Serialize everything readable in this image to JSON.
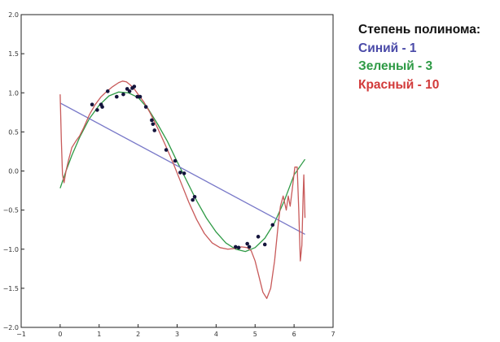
{
  "chart_data": {
    "type": "line",
    "title": "",
    "xlabel": "",
    "ylabel": "",
    "xlim": [
      -1,
      7
    ],
    "ylim": [
      -2.0,
      2.0
    ],
    "x_ticks": [
      "−1",
      "0",
      "1",
      "2",
      "3",
      "4",
      "5",
      "6",
      "7"
    ],
    "y_ticks": [
      "2.0",
      "1.5",
      "1.0",
      "0.5",
      "0.0",
      "−0.5",
      "−1.0",
      "−1.5",
      "−2.0"
    ],
    "grid": false,
    "legend": {
      "placement": "outside-right",
      "title": "Степень полинома:",
      "entries": [
        {
          "label": "Синий - 1",
          "color": "#4a4aa8"
        },
        {
          "label": "Зеленый - 3",
          "color": "#2e9a45"
        },
        {
          "label": "Красный - 10",
          "color": "#d23a3a"
        }
      ]
    },
    "scatter_points": {
      "color": "#14143c",
      "x": [
        0.82,
        0.95,
        1.05,
        1.08,
        1.22,
        1.45,
        1.62,
        1.72,
        1.78,
        1.85,
        1.9,
        1.98,
        2.05,
        2.2,
        2.35,
        2.38,
        2.42,
        2.72,
        2.95,
        3.08,
        3.18,
        3.4,
        3.45,
        4.5,
        4.58,
        4.8,
        4.85,
        5.08,
        5.25,
        5.45
      ],
      "y": [
        0.85,
        0.78,
        0.85,
        0.82,
        1.02,
        0.95,
        0.98,
        1.05,
        1.02,
        1.06,
        1.08,
        0.95,
        0.95,
        0.82,
        0.65,
        0.6,
        0.52,
        0.27,
        0.13,
        -0.02,
        -0.03,
        -0.37,
        -0.33,
        -0.97,
        -0.98,
        -0.93,
        -0.97,
        -0.84,
        -0.94,
        -0.69
      ]
    },
    "series": [
      {
        "name": "Синий - 1",
        "color": "#7878c8",
        "x": [
          0.0,
          6.28
        ],
        "y": [
          0.87,
          -0.81
        ]
      },
      {
        "name": "Зеленый - 3",
        "color": "#2e9a45",
        "x": [
          0.0,
          0.15,
          0.3,
          0.5,
          0.75,
          1.0,
          1.25,
          1.5,
          1.75,
          2.0,
          2.25,
          2.5,
          2.75,
          3.0,
          3.25,
          3.5,
          3.75,
          4.0,
          4.25,
          4.5,
          4.75,
          5.0,
          5.25,
          5.5,
          5.75,
          6.0,
          6.28
        ],
        "y": [
          -0.22,
          0.0,
          0.2,
          0.43,
          0.67,
          0.84,
          0.96,
          1.01,
          1.0,
          0.94,
          0.8,
          0.6,
          0.38,
          0.12,
          -0.13,
          -0.38,
          -0.6,
          -0.78,
          -0.92,
          -1.0,
          -1.03,
          -0.98,
          -0.86,
          -0.66,
          -0.38,
          -0.05,
          0.15
        ]
      },
      {
        "name": "Красный - 10",
        "color": "#c85a5a",
        "x": [
          0.0,
          0.03,
          0.06,
          0.1,
          0.15,
          0.22,
          0.3,
          0.4,
          0.5,
          0.6,
          0.75,
          0.9,
          1.05,
          1.2,
          1.35,
          1.5,
          1.6,
          1.7,
          1.8,
          1.9,
          2.0,
          2.15,
          2.3,
          2.5,
          2.7,
          2.9,
          3.1,
          3.3,
          3.5,
          3.7,
          3.9,
          4.1,
          4.3,
          4.5,
          4.65,
          4.8,
          4.9,
          5.0,
          5.1,
          5.2,
          5.3,
          5.4,
          5.5,
          5.6,
          5.65,
          5.72,
          5.8,
          5.85,
          5.9,
          5.95,
          6.02,
          6.08,
          6.12,
          6.16,
          6.2,
          6.23,
          6.25,
          6.28
        ],
        "y": [
          0.98,
          0.4,
          -0.05,
          -0.15,
          0.0,
          0.15,
          0.3,
          0.38,
          0.45,
          0.55,
          0.72,
          0.85,
          0.95,
          1.02,
          1.08,
          1.13,
          1.15,
          1.14,
          1.1,
          1.05,
          0.98,
          0.88,
          0.75,
          0.55,
          0.33,
          0.1,
          -0.15,
          -0.4,
          -0.62,
          -0.8,
          -0.92,
          -0.98,
          -1.0,
          -0.99,
          -0.97,
          -0.98,
          -1.02,
          -1.15,
          -1.35,
          -1.55,
          -1.63,
          -1.5,
          -1.15,
          -0.65,
          -0.45,
          -0.32,
          -0.5,
          -0.32,
          -0.45,
          -0.25,
          0.05,
          0.05,
          -0.5,
          -1.15,
          -0.95,
          -0.35,
          -0.05,
          -0.6
        ]
      }
    ]
  }
}
